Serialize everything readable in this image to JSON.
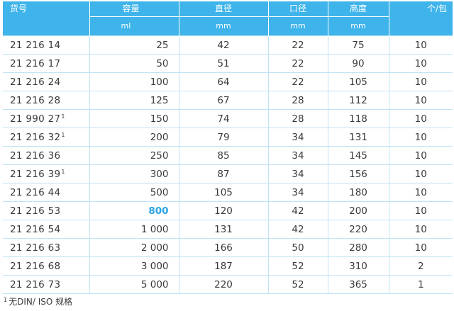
{
  "table": {
    "headers": [
      {
        "top": "货号",
        "bottom": ""
      },
      {
        "top": "容量",
        "bottom": "ml"
      },
      {
        "top": "直径",
        "bottom": "mm"
      },
      {
        "top": "口径",
        "bottom": "mm"
      },
      {
        "top": "高度",
        "bottom": "mm"
      },
      {
        "top": "个/包",
        "bottom": ""
      }
    ],
    "rows": [
      {
        "code": "21 216 14",
        "mark": "",
        "volume": "25",
        "diameter": "42",
        "opening": "22",
        "height": "75",
        "per_pack": "10",
        "highlight": false
      },
      {
        "code": "21 216 17",
        "mark": "",
        "volume": "50",
        "diameter": "51",
        "opening": "22",
        "height": "90",
        "per_pack": "10",
        "highlight": false
      },
      {
        "code": "21 216 24",
        "mark": "",
        "volume": "100",
        "diameter": "64",
        "opening": "22",
        "height": "105",
        "per_pack": "10",
        "highlight": false
      },
      {
        "code": "21 216 28",
        "mark": "",
        "volume": "125",
        "diameter": "67",
        "opening": "28",
        "height": "112",
        "per_pack": "10",
        "highlight": false
      },
      {
        "code": "21 990 27",
        "mark": "1",
        "volume": "150",
        "diameter": "74",
        "opening": "28",
        "height": "118",
        "per_pack": "10",
        "highlight": false
      },
      {
        "code": "21 216 32",
        "mark": "1",
        "volume": "200",
        "diameter": "79",
        "opening": "34",
        "height": "131",
        "per_pack": "10",
        "highlight": false
      },
      {
        "code": "21 216 36",
        "mark": "",
        "volume": "250",
        "diameter": "85",
        "opening": "34",
        "height": "145",
        "per_pack": "10",
        "highlight": false
      },
      {
        "code": "21 216 39",
        "mark": "1",
        "volume": "300",
        "diameter": "87",
        "opening": "34",
        "height": "156",
        "per_pack": "10",
        "highlight": false
      },
      {
        "code": "21 216 44",
        "mark": "",
        "volume": "500",
        "diameter": "105",
        "opening": "34",
        "height": "180",
        "per_pack": "10",
        "highlight": false
      },
      {
        "code": "21 216 53",
        "mark": "",
        "volume": "800",
        "diameter": "120",
        "opening": "42",
        "height": "200",
        "per_pack": "10",
        "highlight": true
      },
      {
        "code": "21 216 54",
        "mark": "",
        "volume": "1 000",
        "diameter": "131",
        "opening": "42",
        "height": "220",
        "per_pack": "10",
        "highlight": false
      },
      {
        "code": "21 216 63",
        "mark": "",
        "volume": "2 000",
        "diameter": "166",
        "opening": "50",
        "height": "280",
        "per_pack": "10",
        "highlight": false
      },
      {
        "code": "21 216 68",
        "mark": "",
        "volume": "3 000",
        "diameter": "187",
        "opening": "52",
        "height": "310",
        "per_pack": "2",
        "highlight": false
      },
      {
        "code": "21 216 73",
        "mark": "",
        "volume": "5 000",
        "diameter": "220",
        "opening": "52",
        "height": "365",
        "per_pack": "1",
        "highlight": false
      }
    ]
  },
  "footnote": {
    "mark": "1",
    "text": "无DIN/ ISO 规格"
  },
  "colors": {
    "header_bg": "#3fb4ea",
    "highlight": "#2aa4e0",
    "grid": "#bfe3f5"
  }
}
